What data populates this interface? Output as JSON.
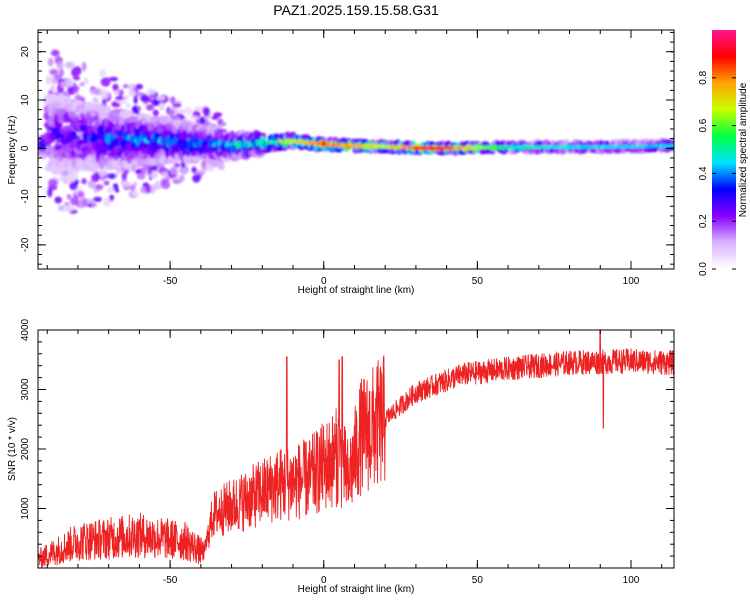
{
  "figure": {
    "title": "PAZ1.2025.159.15.58.G31"
  },
  "chart_data": [
    {
      "type": "heatmap",
      "title": "PAZ1.2025.159.15.58.G31",
      "xlabel": "Height of straight line (km)",
      "ylabel": "Frequency (Hz)",
      "xlim": [
        -93,
        114
      ],
      "ylim": [
        -25,
        24.5
      ],
      "xticks": [
        -50,
        0,
        50,
        100
      ],
      "yticks": [
        -20,
        -10,
        0,
        10,
        20
      ],
      "grid": false,
      "colorbar": {
        "label": "Normalized spectral amplitude",
        "range": [
          0,
          1
        ],
        "ticks": [
          "0.0",
          "0.2",
          "0.4",
          "0.6",
          "0.8"
        ],
        "colors": [
          "#ffffff",
          "#d9b3ff",
          "#8a00ff",
          "#0000ff",
          "#00e5ff",
          "#00ff40",
          "#c8ff00",
          "#ffa500",
          "#ff0000",
          "#ff1493"
        ]
      },
      "band": [
        {
          "x": -90,
          "center": 3,
          "spread": 8,
          "amp": 0.25
        },
        {
          "x": -70,
          "center": 2,
          "spread": 6,
          "amp": 0.35
        },
        {
          "x": -50,
          "center": 1.5,
          "spread": 4,
          "amp": 0.4
        },
        {
          "x": -30,
          "center": 0.5,
          "spread": 2.5,
          "amp": 0.45
        },
        {
          "x": -10,
          "center": 1.5,
          "spread": 1.2,
          "amp": 0.7
        },
        {
          "x": 0,
          "center": 0.8,
          "spread": 1.0,
          "amp": 0.85
        },
        {
          "x": 20,
          "center": 0.3,
          "spread": 0.9,
          "amp": 0.7
        },
        {
          "x": 35,
          "center": 0,
          "spread": 0.8,
          "amp": 0.95
        },
        {
          "x": 60,
          "center": 0.2,
          "spread": 0.9,
          "amp": 0.5
        },
        {
          "x": 90,
          "center": 0.3,
          "spread": 0.9,
          "amp": 0.45
        },
        {
          "x": 113,
          "center": 0.5,
          "spread": 0.9,
          "amp": 0.45
        }
      ]
    },
    {
      "type": "line",
      "title": "",
      "xlabel": "Height of straight line (km)",
      "ylabel": "SNR (10 * v/v)",
      "xlim": [
        -93,
        114
      ],
      "ylim": [
        0,
        4000
      ],
      "xticks": [
        -50,
        0,
        50,
        100
      ],
      "yticks": [
        1000,
        2000,
        3000,
        4000
      ],
      "grid": false,
      "color": "#ee2222",
      "trend": [
        {
          "x": -93,
          "y": 150
        },
        {
          "x": -80,
          "y": 450
        },
        {
          "x": -60,
          "y": 550
        },
        {
          "x": -45,
          "y": 450
        },
        {
          "x": -39,
          "y": 250
        },
        {
          "x": -36,
          "y": 900
        },
        {
          "x": -25,
          "y": 1150
        },
        {
          "x": -15,
          "y": 1400
        },
        {
          "x": -5,
          "y": 1500
        },
        {
          "x": 5,
          "y": 1900
        },
        {
          "x": 8,
          "y": 1500
        },
        {
          "x": 12,
          "y": 2200
        },
        {
          "x": 20,
          "y": 2500
        },
        {
          "x": 30,
          "y": 2950
        },
        {
          "x": 45,
          "y": 3250
        },
        {
          "x": 60,
          "y": 3350
        },
        {
          "x": 80,
          "y": 3450
        },
        {
          "x": 100,
          "y": 3480
        },
        {
          "x": 113,
          "y": 3450
        }
      ],
      "spikes": [
        {
          "x": -12,
          "y": 3550
        },
        {
          "x": 5,
          "y": 3500
        },
        {
          "x": 6,
          "y": 3550
        },
        {
          "x": 8,
          "y": 1150
        },
        {
          "x": 90,
          "y": 4000
        },
        {
          "x": 91,
          "y": 2350
        }
      ]
    }
  ]
}
